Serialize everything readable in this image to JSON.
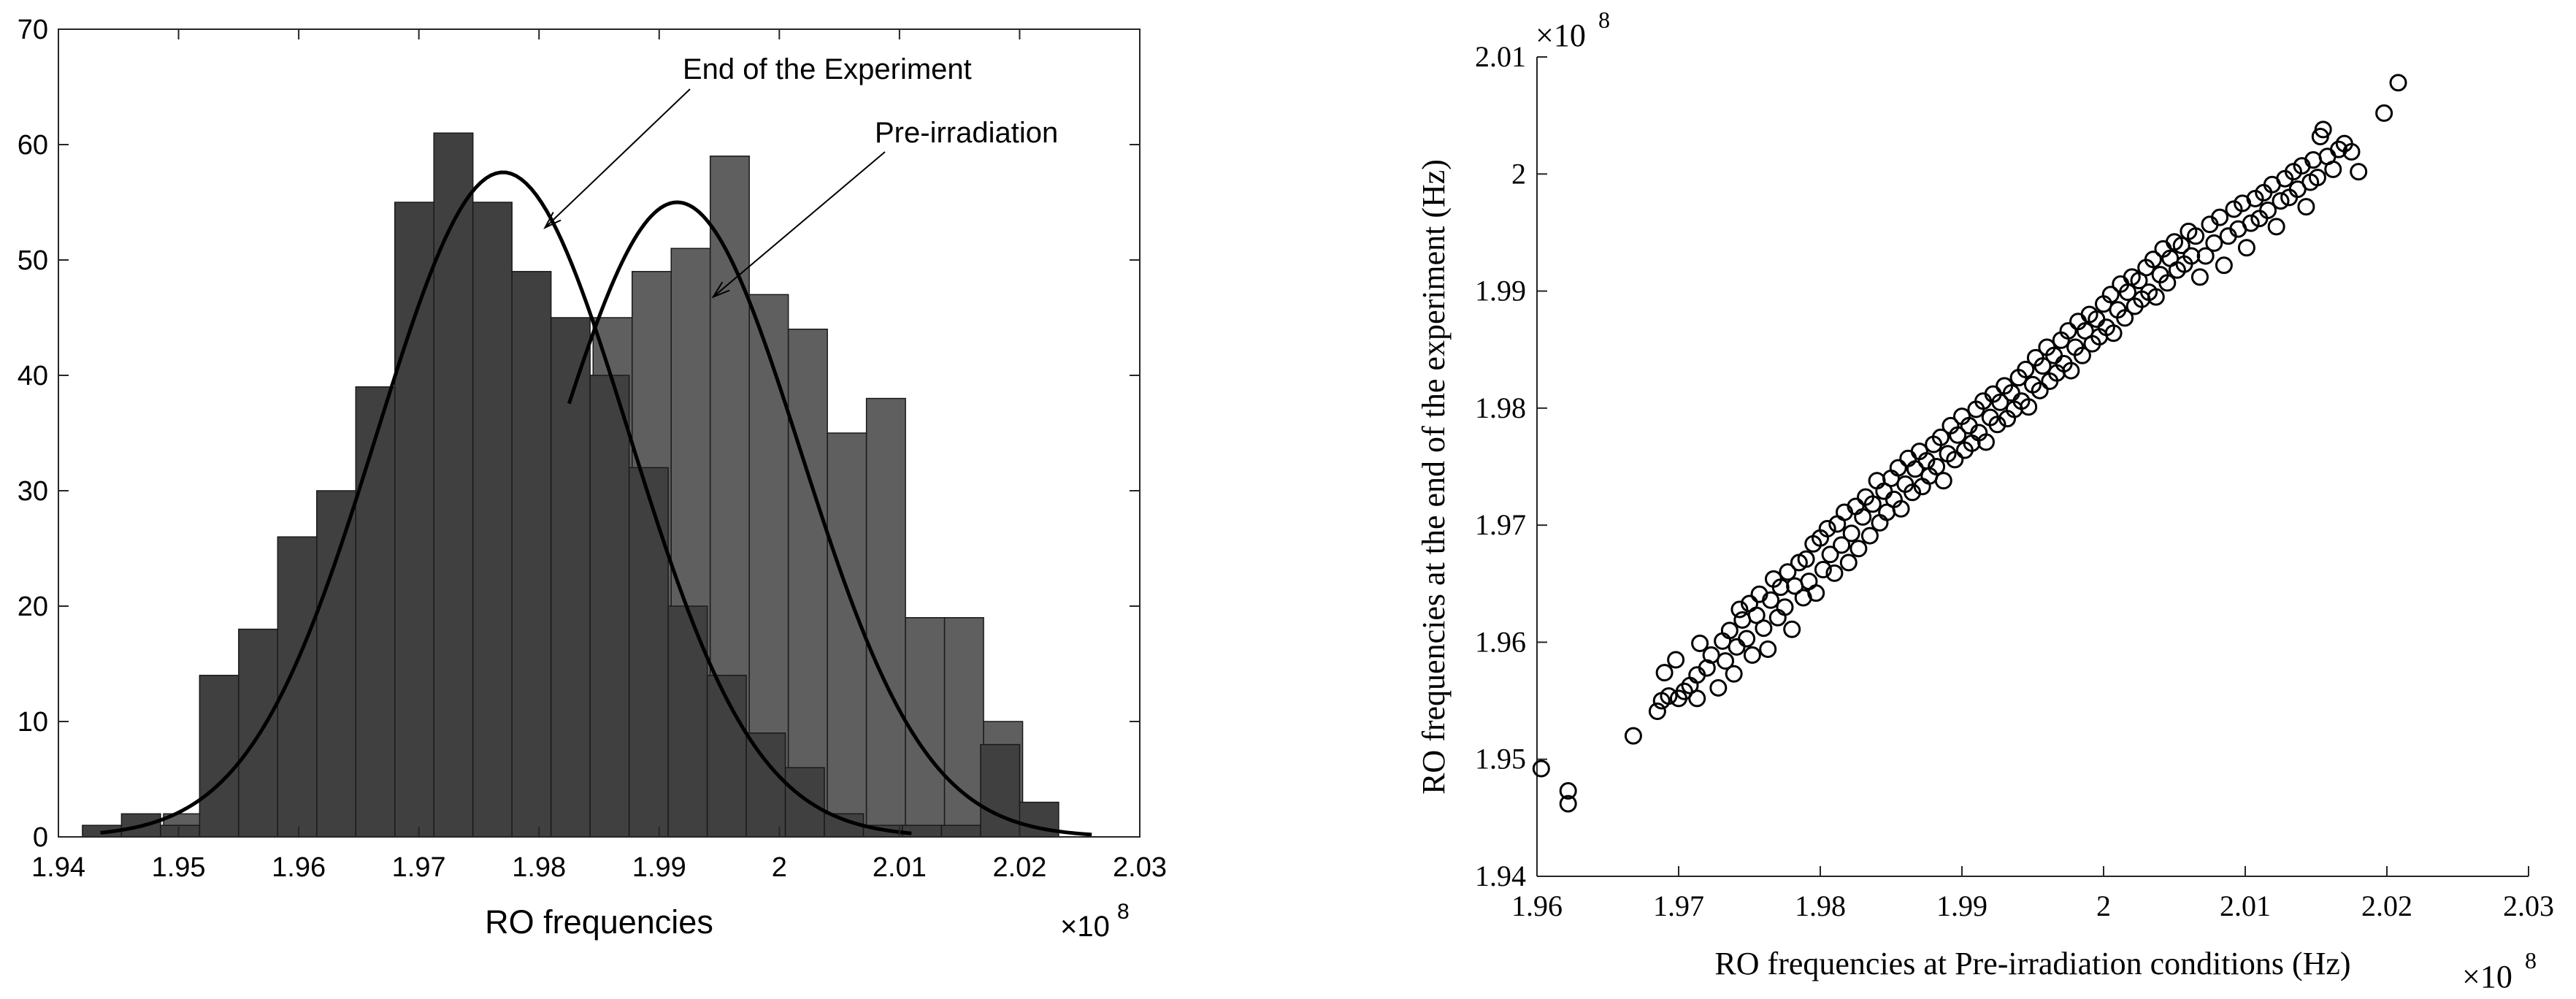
{
  "chart_data": [
    {
      "type": "bar",
      "title": "",
      "xlabel": "RO frequencies",
      "ylabel": "",
      "x_exponent": "×10",
      "x_exponent_power": "8",
      "xlim": [
        1.94,
        2.03
      ],
      "ylim": [
        0,
        70
      ],
      "xticks": [
        "1.94",
        "1.95",
        "1.96",
        "1.97",
        "1.98",
        "1.99",
        "2",
        "2.01",
        "2.02",
        "2.03"
      ],
      "yticks": [
        "0",
        "10",
        "20",
        "30",
        "40",
        "50",
        "60",
        "70"
      ],
      "series": [
        {
          "name": "Pre-irradiation",
          "bin_width": 0.00325,
          "bin_starts": [
            1.9455,
            1.94875,
            1.952,
            1.95525,
            1.9585,
            1.96175,
            1.965,
            1.96825,
            1.9715,
            1.97475,
            1.978,
            1.98125,
            1.9845,
            1.98775,
            1.991,
            1.99425,
            1.9975,
            2.00075,
            2.004,
            2.00725,
            2.0105,
            2.01375,
            2.017
          ],
          "values": [
            1,
            2,
            1,
            3,
            5,
            7,
            10,
            13,
            17,
            23,
            30,
            40,
            45,
            49,
            51,
            59,
            47,
            44,
            35,
            38,
            19,
            19,
            10
          ]
        },
        {
          "name": "End of the Experiment",
          "bin_width": 0.00325,
          "bin_starts": [
            1.942,
            1.94525,
            1.9485,
            1.95175,
            1.955,
            1.95825,
            1.9615,
            1.96475,
            1.968,
            1.97125,
            1.9745,
            1.97775,
            1.981,
            1.98425,
            1.9875,
            1.99075,
            1.994,
            1.99725,
            2.0005,
            2.00375,
            2.007,
            2.01025,
            2.0135,
            2.01675,
            2.02
          ],
          "values": [
            1,
            2,
            1,
            14,
            18,
            26,
            30,
            39,
            55,
            61,
            55,
            49,
            45,
            40,
            32,
            20,
            14,
            9,
            6,
            2,
            1,
            1,
            1,
            8,
            3
          ]
        }
      ],
      "fits": [
        {
          "name": "End of the Experiment",
          "mean": 1.977,
          "sigma": 0.0105,
          "peak": 57.6,
          "x_range": [
            1.9435,
            2.011
          ]
        },
        {
          "name": "Pre-irradiation",
          "mean": 1.9915,
          "sigma": 0.0103,
          "peak": 55,
          "x_range": [
            1.9825,
            2.026
          ]
        }
      ],
      "annotations": [
        {
          "text": "End of the Experiment",
          "points_to_x": 1.9805,
          "points_to_y": 52.8
        },
        {
          "text": "Pre-irradiation",
          "points_to_x": 1.9945,
          "points_to_y": 46.8
        }
      ]
    },
    {
      "type": "scatter",
      "title": "",
      "xlabel": "RO frequencies at Pre-irradiation conditions (Hz)",
      "ylabel": "RO frequencies at the end of the experiment (Hz)",
      "x_exponent": "×10",
      "x_exponent_power": "8",
      "y_exponent": "×10",
      "y_exponent_power": "8",
      "xlim": [
        1.96,
        2.03
      ],
      "ylim": [
        1.94,
        2.01
      ],
      "xticks": [
        "1.96",
        "1.97",
        "1.98",
        "1.99",
        "2",
        "2.01",
        "2.02",
        "2.03"
      ],
      "yticks": [
        "1.94",
        "1.95",
        "1.96",
        "1.97",
        "1.98",
        "1.99",
        "2",
        "2.01"
      ],
      "points": [
        [
          1.9603,
          1.9492
        ],
        [
          1.9622,
          1.9473
        ],
        [
          1.9622,
          1.9462
        ],
        [
          1.9668,
          1.952
        ],
        [
          1.9685,
          1.9541
        ],
        [
          1.9688,
          1.955
        ],
        [
          1.969,
          1.9574
        ],
        [
          1.9693,
          1.9554
        ],
        [
          1.9698,
          1.9585
        ],
        [
          1.97,
          1.9552
        ],
        [
          1.9704,
          1.9558
        ],
        [
          1.9708,
          1.9563
        ],
        [
          1.9713,
          1.9552
        ],
        [
          1.9713,
          1.9572
        ],
        [
          1.9715,
          1.9599
        ],
        [
          1.972,
          1.9578
        ],
        [
          1.9723,
          1.9589
        ],
        [
          1.9728,
          1.9561
        ],
        [
          1.9731,
          1.9601
        ],
        [
          1.9733,
          1.9584
        ],
        [
          1.9736,
          1.961
        ],
        [
          1.9739,
          1.9573
        ],
        [
          1.9741,
          1.9596
        ],
        [
          1.9743,
          1.9628
        ],
        [
          1.9745,
          1.9619
        ],
        [
          1.9748,
          1.9603
        ],
        [
          1.975,
          1.9633
        ],
        [
          1.9752,
          1.9589
        ],
        [
          1.9755,
          1.9623
        ],
        [
          1.9757,
          1.9641
        ],
        [
          1.976,
          1.9612
        ],
        [
          1.9763,
          1.9594
        ],
        [
          1.9765,
          1.9636
        ],
        [
          1.9767,
          1.9654
        ],
        [
          1.977,
          1.9621
        ],
        [
          1.9772,
          1.9647
        ],
        [
          1.9775,
          1.963
        ],
        [
          1.9777,
          1.966
        ],
        [
          1.978,
          1.9611
        ],
        [
          1.9782,
          1.9648
        ],
        [
          1.9785,
          1.9668
        ],
        [
          1.9788,
          1.9638
        ],
        [
          1.979,
          1.9671
        ],
        [
          1.9792,
          1.9652
        ],
        [
          1.9795,
          1.9684
        ],
        [
          1.9797,
          1.9642
        ],
        [
          1.98,
          1.9689
        ],
        [
          1.9802,
          1.9662
        ],
        [
          1.9805,
          1.9697
        ],
        [
          1.9807,
          1.9675
        ],
        [
          1.981,
          1.9659
        ],
        [
          1.9812,
          1.9701
        ],
        [
          1.9815,
          1.9683
        ],
        [
          1.9817,
          1.9711
        ],
        [
          1.982,
          1.9668
        ],
        [
          1.9822,
          1.9693
        ],
        [
          1.9825,
          1.9716
        ],
        [
          1.9827,
          1.968
        ],
        [
          1.983,
          1.9707
        ],
        [
          1.9832,
          1.9724
        ],
        [
          1.9835,
          1.9691
        ],
        [
          1.9837,
          1.9718
        ],
        [
          1.984,
          1.9738
        ],
        [
          1.9842,
          1.9702
        ],
        [
          1.9845,
          1.9729
        ],
        [
          1.9847,
          1.9711
        ],
        [
          1.985,
          1.974
        ],
        [
          1.9852,
          1.9722
        ],
        [
          1.9855,
          1.9749
        ],
        [
          1.9857,
          1.9714
        ],
        [
          1.986,
          1.9735
        ],
        [
          1.9862,
          1.9757
        ],
        [
          1.9865,
          1.9728
        ],
        [
          1.9867,
          1.9748
        ],
        [
          1.987,
          1.9763
        ],
        [
          1.9872,
          1.9733
        ],
        [
          1.9875,
          1.9755
        ],
        [
          1.9877,
          1.9742
        ],
        [
          1.988,
          1.9769
        ],
        [
          1.9882,
          1.975
        ],
        [
          1.9885,
          1.9775
        ],
        [
          1.9887,
          1.9738
        ],
        [
          1.989,
          1.9761
        ],
        [
          1.9892,
          1.9785
        ],
        [
          1.9895,
          1.9756
        ],
        [
          1.9897,
          1.9777
        ],
        [
          1.99,
          1.9793
        ],
        [
          1.9902,
          1.9764
        ],
        [
          1.9905,
          1.9785
        ],
        [
          1.9907,
          1.977
        ],
        [
          1.991,
          1.9799
        ],
        [
          1.9912,
          1.9779
        ],
        [
          1.9915,
          1.9806
        ],
        [
          1.9917,
          1.9771
        ],
        [
          1.992,
          1.9792
        ],
        [
          1.9922,
          1.9812
        ],
        [
          1.9925,
          1.9786
        ],
        [
          1.9927,
          1.9805
        ],
        [
          1.993,
          1.9819
        ],
        [
          1.9932,
          1.9791
        ],
        [
          1.9935,
          1.9813
        ],
        [
          1.9937,
          1.9799
        ],
        [
          1.994,
          1.9826
        ],
        [
          1.9942,
          1.9806
        ],
        [
          1.9945,
          1.9833
        ],
        [
          1.9947,
          1.9801
        ],
        [
          1.995,
          1.982
        ],
        [
          1.9952,
          1.9843
        ],
        [
          1.9955,
          1.9815
        ],
        [
          1.9957,
          1.9836
        ],
        [
          1.996,
          1.9852
        ],
        [
          1.9962,
          1.9823
        ],
        [
          1.9965,
          1.9845
        ],
        [
          1.9967,
          1.983
        ],
        [
          1.997,
          1.9858
        ],
        [
          1.9972,
          1.9838
        ],
        [
          1.9975,
          1.9866
        ],
        [
          1.9977,
          1.9832
        ],
        [
          1.998,
          1.9852
        ],
        [
          1.9982,
          1.9874
        ],
        [
          1.9985,
          1.9845
        ],
        [
          1.9987,
          1.9866
        ],
        [
          1.999,
          1.988
        ],
        [
          1.9992,
          1.9855
        ],
        [
          1.9995,
          1.9876
        ],
        [
          1.9997,
          1.9861
        ],
        [
          2.0,
          1.9889
        ],
        [
          2.0002,
          1.9869
        ],
        [
          2.0005,
          1.9897
        ],
        [
          2.0007,
          1.9864
        ],
        [
          2.001,
          1.9884
        ],
        [
          2.0012,
          1.9906
        ],
        [
          2.0015,
          1.9877
        ],
        [
          2.0017,
          1.9899
        ],
        [
          2.002,
          1.9912
        ],
        [
          2.0022,
          1.9887
        ],
        [
          2.0025,
          1.9909
        ],
        [
          2.0027,
          1.9893
        ],
        [
          2.003,
          1.992
        ],
        [
          2.0032,
          1.9899
        ],
        [
          2.0035,
          1.9927
        ],
        [
          2.0037,
          1.9895
        ],
        [
          2.004,
          1.9914
        ],
        [
          2.0042,
          1.9936
        ],
        [
          2.0045,
          1.9907
        ],
        [
          2.0047,
          1.9928
        ],
        [
          2.005,
          1.9942
        ],
        [
          2.0052,
          1.9918
        ],
        [
          2.0055,
          1.9939
        ],
        [
          2.0057,
          1.9923
        ],
        [
          2.006,
          1.9951
        ],
        [
          2.0062,
          1.993
        ],
        [
          2.0065,
          1.9947
        ],
        [
          2.0068,
          1.9912
        ],
        [
          2.0072,
          1.993
        ],
        [
          2.0075,
          1.9957
        ],
        [
          2.0078,
          1.9941
        ],
        [
          2.0082,
          1.9963
        ],
        [
          2.0085,
          1.9922
        ],
        [
          2.0088,
          1.9947
        ],
        [
          2.0092,
          1.997
        ],
        [
          2.0095,
          1.9953
        ],
        [
          2.0098,
          1.9975
        ],
        [
          2.0101,
          1.9937
        ],
        [
          2.0104,
          1.9958
        ],
        [
          2.0107,
          1.9979
        ],
        [
          2.011,
          1.9962
        ],
        [
          2.0113,
          1.9984
        ],
        [
          2.0116,
          1.9969
        ],
        [
          2.0119,
          1.9991
        ],
        [
          2.0122,
          1.9955
        ],
        [
          2.0125,
          1.9977
        ],
        [
          2.0128,
          1.9996
        ],
        [
          2.0131,
          1.998
        ],
        [
          2.0134,
          2.0002
        ],
        [
          2.0137,
          1.9987
        ],
        [
          2.014,
          2.0007
        ],
        [
          2.0143,
          1.9972
        ],
        [
          2.0146,
          1.9993
        ],
        [
          2.0148,
          2.0012
        ],
        [
          2.0151,
          1.9997
        ],
        [
          2.0153,
          2.0032
        ],
        [
          2.0155,
          2.0038
        ],
        [
          2.0158,
          2.0015
        ],
        [
          2.0162,
          2.0004
        ],
        [
          2.0166,
          2.0021
        ],
        [
          2.017,
          2.0026
        ],
        [
          2.0175,
          2.0019
        ],
        [
          2.018,
          2.0002
        ],
        [
          2.0198,
          2.0052
        ],
        [
          2.0208,
          2.0078
        ]
      ]
    }
  ]
}
